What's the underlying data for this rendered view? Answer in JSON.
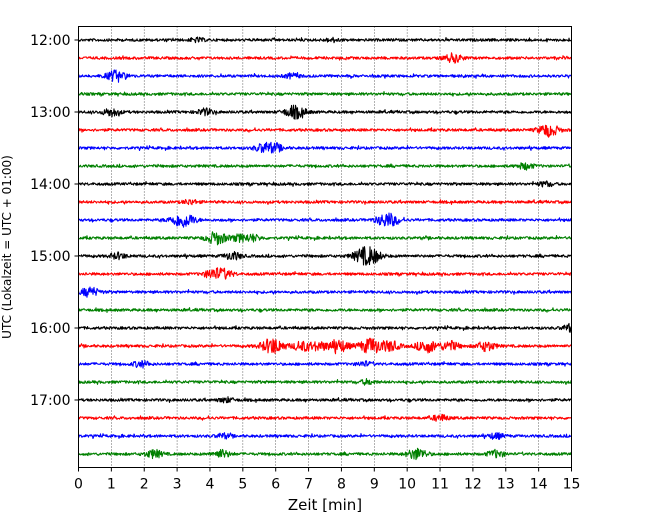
{
  "chart_data": {
    "type": "line",
    "title": "",
    "xlabel": "Zeit  [min]",
    "ylabel": "UTC (Lokalzeit = UTC + 01:00)",
    "xlim": [
      0,
      15
    ],
    "ylim": [
      "12:00",
      "17:45"
    ],
    "x_ticks": [
      "0",
      "1",
      "2",
      "3",
      "4",
      "5",
      "6",
      "7",
      "8",
      "9",
      "10",
      "11",
      "12",
      "13",
      "14",
      "15"
    ],
    "y_ticks": [
      "12:00",
      "13:00",
      "14:00",
      "15:00",
      "16:00",
      "17:00"
    ],
    "grid": "vertical dotted",
    "trace_interval_min": 15,
    "trace_colors": [
      "#000000",
      "#ff0000",
      "#0000ff",
      "#008000"
    ],
    "traces": [
      {
        "start": "12:00",
        "color": "#000000",
        "events": [
          {
            "t": 3.6,
            "amp": 0.25
          },
          {
            "t": 7.7,
            "amp": 0.2
          }
        ]
      },
      {
        "start": "12:15",
        "color": "#ff0000",
        "events": [
          {
            "t": 11.4,
            "amp": 0.55
          }
        ]
      },
      {
        "start": "12:30",
        "color": "#0000ff",
        "events": [
          {
            "t": 1.15,
            "amp": 0.7
          },
          {
            "t": 6.5,
            "amp": 0.3
          }
        ]
      },
      {
        "start": "12:45",
        "color": "#008000",
        "events": []
      },
      {
        "start": "13:00",
        "color": "#000000",
        "events": [
          {
            "t": 1.0,
            "amp": 0.5
          },
          {
            "t": 3.85,
            "amp": 0.4
          },
          {
            "t": 6.6,
            "amp": 0.8
          }
        ]
      },
      {
        "start": "13:15",
        "color": "#ff0000",
        "events": [
          {
            "t": 14.3,
            "amp": 0.8
          }
        ]
      },
      {
        "start": "13:30",
        "color": "#0000ff",
        "events": [
          {
            "t": 5.65,
            "amp": 0.6
          },
          {
            "t": 6.0,
            "amp": 0.4
          }
        ]
      },
      {
        "start": "13:45",
        "color": "#008000",
        "events": [
          {
            "t": 13.6,
            "amp": 0.4
          }
        ]
      },
      {
        "start": "14:00",
        "color": "#000000",
        "events": [
          {
            "t": 14.2,
            "amp": 0.3
          }
        ]
      },
      {
        "start": "14:15",
        "color": "#ff0000",
        "events": [
          {
            "t": 3.4,
            "amp": 0.3
          }
        ]
      },
      {
        "start": "14:30",
        "color": "#0000ff",
        "events": [
          {
            "t": 3.05,
            "amp": 0.7
          },
          {
            "t": 3.35,
            "amp": 0.5
          },
          {
            "t": 9.4,
            "amp": 0.9
          }
        ]
      },
      {
        "start": "14:45",
        "color": "#008000",
        "events": [
          {
            "t": 4.2,
            "amp": 0.8
          },
          {
            "t": 4.9,
            "amp": 0.4
          },
          {
            "t": 5.3,
            "amp": 0.4
          }
        ]
      },
      {
        "start": "15:00",
        "color": "#000000",
        "events": [
          {
            "t": 1.2,
            "amp": 0.4
          },
          {
            "t": 4.7,
            "amp": 0.5
          },
          {
            "t": 8.65,
            "amp": 0.8
          },
          {
            "t": 8.95,
            "amp": 0.7
          }
        ]
      },
      {
        "start": "15:15",
        "color": "#ff0000",
        "events": [
          {
            "t": 4.1,
            "amp": 0.6
          },
          {
            "t": 4.45,
            "amp": 0.5
          }
        ]
      },
      {
        "start": "15:30",
        "color": "#0000ff",
        "events": [
          {
            "t": 0.35,
            "amp": 0.6
          }
        ]
      },
      {
        "start": "15:45",
        "color": "#008000",
        "events": []
      },
      {
        "start": "16:00",
        "color": "#000000",
        "events": [
          {
            "t": 15.0,
            "amp": 0.5
          }
        ]
      },
      {
        "start": "16:15",
        "color": "#ff0000",
        "events": [
          {
            "t": 5.9,
            "amp": 1.0
          },
          {
            "t": 6.8,
            "amp": 0.6
          },
          {
            "t": 7.3,
            "amp": 0.5
          },
          {
            "t": 7.9,
            "amp": 0.8
          },
          {
            "t": 8.9,
            "amp": 1.0
          },
          {
            "t": 9.5,
            "amp": 0.6
          },
          {
            "t": 10.6,
            "amp": 0.8
          },
          {
            "t": 11.3,
            "amp": 0.6
          },
          {
            "t": 12.4,
            "amp": 0.6
          }
        ]
      },
      {
        "start": "16:30",
        "color": "#0000ff",
        "events": [
          {
            "t": 1.9,
            "amp": 0.4
          },
          {
            "t": 8.7,
            "amp": 0.3
          }
        ]
      },
      {
        "start": "16:45",
        "color": "#008000",
        "events": [
          {
            "t": 8.8,
            "amp": 0.3
          }
        ]
      },
      {
        "start": "17:00",
        "color": "#000000",
        "events": [
          {
            "t": 4.5,
            "amp": 0.3
          }
        ]
      },
      {
        "start": "17:15",
        "color": "#ff0000",
        "events": [
          {
            "t": 11.0,
            "amp": 0.4
          }
        ]
      },
      {
        "start": "17:30",
        "color": "#0000ff",
        "events": [
          {
            "t": 4.4,
            "amp": 0.3
          },
          {
            "t": 12.7,
            "amp": 0.35
          }
        ]
      },
      {
        "start": "17:45",
        "color": "#008000",
        "events": [
          {
            "t": 2.3,
            "amp": 0.5
          },
          {
            "t": 4.35,
            "amp": 0.5
          },
          {
            "t": 10.3,
            "amp": 0.7
          },
          {
            "t": 12.7,
            "amp": 0.45
          }
        ]
      }
    ]
  }
}
